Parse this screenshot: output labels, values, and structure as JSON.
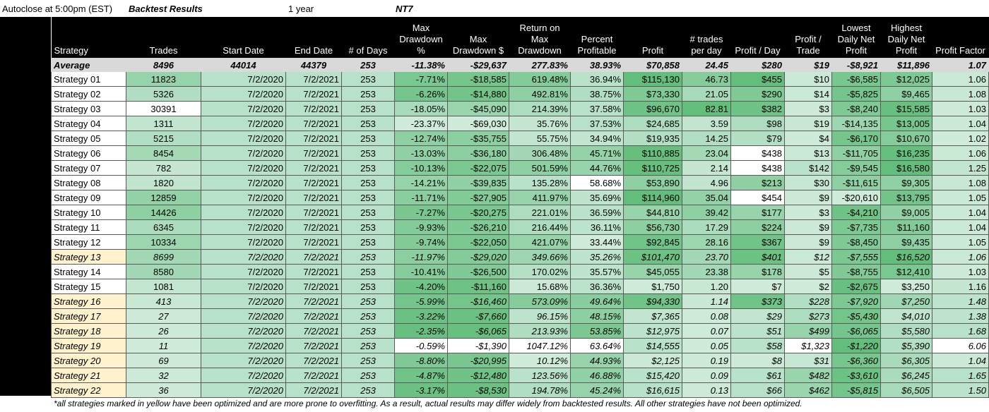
{
  "header": {
    "autoclose": "Autoclose at 5:00pm (EST)",
    "title": "Backtest Results",
    "period": "1 year",
    "platform": "NT7"
  },
  "columns": [
    "Strategy",
    "Trades",
    "Start Date",
    "End Date",
    "# of Days",
    "Max Drawdown %",
    "Max Drawdown $",
    "Return on Max Drawdown",
    "Percent Profitable",
    "Profit",
    "# trades per day",
    "Profit / Day",
    "Profit / Trade",
    "Lowest Daily Net Profit",
    "Highest Daily Net Profit",
    "Profit Factor"
  ],
  "column_lines": [
    [
      "Strategy"
    ],
    [
      "Trades"
    ],
    [
      "Start Date"
    ],
    [
      "End Date"
    ],
    [
      "# of Days"
    ],
    [
      "Max",
      "Drawdown",
      "%"
    ],
    [
      "Max",
      "Drawdown $"
    ],
    [
      "Return on",
      "Max",
      "Drawdown"
    ],
    [
      "Percent",
      "Profitable"
    ],
    [
      "Profit"
    ],
    [
      "# trades",
      "per day"
    ],
    [
      "Profit / Day"
    ],
    [
      "Profit /",
      "Trade"
    ],
    [
      "Lowest",
      "Daily Net",
      "Profit"
    ],
    [
      "Highest",
      "Daily Net",
      "Profit"
    ],
    [
      "Profit Factor"
    ]
  ],
  "average": [
    "Average",
    "8496",
    "44014",
    "44379",
    "253",
    "-11.38%",
    "-$29,637",
    "277.83%",
    "38.93%",
    "$70,858",
    "24.45",
    "$280",
    "$19",
    "-$8,921",
    "$11,896",
    "1.07"
  ],
  "rows": [
    {
      "optimized": false,
      "cells": [
        "Strategy 01",
        "11823",
        "7/2/2020",
        "7/2/2021",
        "253",
        "-7.71%",
        "-$18,585",
        "619.48%",
        "36.94%",
        "$115,130",
        "46.73",
        "$455",
        "$10",
        "-$6,585",
        "$12,025",
        "1.06"
      ]
    },
    {
      "optimized": false,
      "cells": [
        "Strategy 02",
        "5326",
        "7/2/2020",
        "7/2/2021",
        "253",
        "-6.26%",
        "-$14,880",
        "492.81%",
        "38.75%",
        "$73,330",
        "21.05",
        "$290",
        "$14",
        "-$5,825",
        "$9,465",
        "1.08"
      ]
    },
    {
      "optimized": false,
      "cells": [
        "Strategy 03",
        "30391",
        "7/2/2020",
        "7/2/2021",
        "253",
        "-18.05%",
        "-$45,090",
        "214.39%",
        "37.58%",
        "$96,670",
        "82.81",
        "$382",
        "$3",
        "-$8,240",
        "$15,585",
        "1.03"
      ]
    },
    {
      "optimized": false,
      "cells": [
        "Strategy 04",
        "1311",
        "7/2/2020",
        "7/2/2021",
        "253",
        "-23.37%",
        "-$69,030",
        "35.76%",
        "37.53%",
        "$24,685",
        "3.59",
        "$98",
        "$19",
        "-$14,135",
        "$13,005",
        "1.04"
      ]
    },
    {
      "optimized": false,
      "cells": [
        "Strategy 05",
        "5215",
        "7/2/2020",
        "7/2/2021",
        "253",
        "-12.74%",
        "-$35,755",
        "55.75%",
        "34.94%",
        "$19,935",
        "14.25",
        "$79",
        "$4",
        "-$6,170",
        "$10,670",
        "1.02"
      ]
    },
    {
      "optimized": false,
      "cells": [
        "Strategy 06",
        "8454",
        "7/2/2020",
        "7/2/2021",
        "253",
        "-13.03%",
        "-$36,180",
        "306.48%",
        "45.71%",
        "$110,885",
        "23.04",
        "$438",
        "$13",
        "-$11,705",
        "$16,235",
        "1.06"
      ]
    },
    {
      "optimized": false,
      "cells": [
        "Strategy 07",
        "782",
        "7/2/2020",
        "7/2/2021",
        "253",
        "-10.13%",
        "-$22,075",
        "501.59%",
        "44.76%",
        "$110,725",
        "2.14",
        "$438",
        "$142",
        "-$9,545",
        "$16,580",
        "1.25"
      ]
    },
    {
      "optimized": false,
      "cells": [
        "Strategy 08",
        "1820",
        "7/2/2020",
        "7/2/2021",
        "253",
        "-14.21%",
        "-$39,835",
        "135.28%",
        "58.68%",
        "$53,890",
        "4.96",
        "$213",
        "$30",
        "-$11,615",
        "$9,305",
        "1.08"
      ]
    },
    {
      "optimized": false,
      "cells": [
        "Strategy 09",
        "12859",
        "7/2/2020",
        "7/2/2021",
        "253",
        "-11.71%",
        "-$27,905",
        "411.97%",
        "35.69%",
        "$114,960",
        "35.04",
        "$454",
        "$9",
        "-$20,610",
        "$13,795",
        "1.05"
      ]
    },
    {
      "optimized": false,
      "cells": [
        "Strategy 10",
        "14426",
        "7/2/2020",
        "7/2/2021",
        "253",
        "-7.27%",
        "-$20,275",
        "221.01%",
        "36.59%",
        "$44,810",
        "39.42",
        "$177",
        "$3",
        "-$4,210",
        "$9,005",
        "1.04"
      ]
    },
    {
      "optimized": false,
      "cells": [
        "Strategy 11",
        "6345",
        "7/2/2020",
        "7/2/2021",
        "253",
        "-9.93%",
        "-$26,210",
        "216.44%",
        "36.11%",
        "$56,730",
        "17.29",
        "$224",
        "$9",
        "-$7,735",
        "$11,160",
        "1.04"
      ]
    },
    {
      "optimized": false,
      "cells": [
        "Strategy 12",
        "10334",
        "7/2/2020",
        "7/2/2021",
        "253",
        "-9.74%",
        "-$22,050",
        "421.07%",
        "33.44%",
        "$92,845",
        "28.16",
        "$367",
        "$9",
        "-$8,450",
        "$9,435",
        "1.05"
      ]
    },
    {
      "optimized": true,
      "cells": [
        "Strategy 13",
        "8699",
        "7/2/2020",
        "7/2/2021",
        "253",
        "-11.97%",
        "-$29,020",
        "349.66%",
        "35.26%",
        "$101,470",
        "23.70",
        "$401",
        "$12",
        "-$7,555",
        "$16,520",
        "1.06"
      ]
    },
    {
      "optimized": false,
      "cells": [
        "Strategy 14",
        "8580",
        "7/2/2020",
        "7/2/2021",
        "253",
        "-10.41%",
        "-$26,500",
        "170.02%",
        "35.57%",
        "$45,055",
        "23.38",
        "$178",
        "$5",
        "-$8,755",
        "$12,410",
        "1.03"
      ]
    },
    {
      "optimized": false,
      "cells": [
        "Strategy 15",
        "1081",
        "7/2/2020",
        "7/2/2021",
        "253",
        "-4.20%",
        "-$11,160",
        "15.68%",
        "36.36%",
        "$1,750",
        "1.20",
        "$7",
        "$2",
        "-$2,675",
        "$3,250",
        "1.16"
      ]
    },
    {
      "optimized": true,
      "cells": [
        "Strategy 16",
        "413",
        "7/2/2020",
        "7/2/2021",
        "253",
        "-5.99%",
        "-$16,460",
        "573.09%",
        "49.64%",
        "$94,330",
        "1.14",
        "$373",
        "$228",
        "-$7,920",
        "$7,250",
        "1.48"
      ]
    },
    {
      "optimized": true,
      "cells": [
        "Strategy 17",
        "27",
        "7/2/2020",
        "7/2/2021",
        "253",
        "-3.22%",
        "-$7,660",
        "96.15%",
        "48.15%",
        "$7,365",
        "0.08",
        "$29",
        "$273",
        "-$5,430",
        "$4,010",
        "1.38"
      ]
    },
    {
      "optimized": true,
      "cells": [
        "Strategy 18",
        "26",
        "7/2/2020",
        "7/2/2021",
        "253",
        "-2.35%",
        "-$6,065",
        "213.93%",
        "53.85%",
        "$12,975",
        "0.07",
        "$51",
        "$499",
        "-$6,065",
        "$5,580",
        "1.68"
      ]
    },
    {
      "optimized": true,
      "cells": [
        "Strategy 19",
        "11",
        "7/2/2020",
        "7/2/2021",
        "253",
        "-0.59%",
        "-$1,390",
        "1047.12%",
        "63.64%",
        "$14,555",
        "0.05",
        "$58",
        "$1,323",
        "-$1,220",
        "$5,390",
        "6.06"
      ]
    },
    {
      "optimized": true,
      "cells": [
        "Strategy 20",
        "69",
        "7/2/2020",
        "7/2/2021",
        "253",
        "-8.80%",
        "-$20,995",
        "10.12%",
        "44.93%",
        "$2,125",
        "0.19",
        "$8",
        "$31",
        "-$6,360",
        "$6,305",
        "1.04"
      ]
    },
    {
      "optimized": true,
      "cells": [
        "Strategy 21",
        "32",
        "7/2/2020",
        "7/2/2021",
        "253",
        "-4.87%",
        "-$12,480",
        "123.56%",
        "46.88%",
        "$15,420",
        "0.09",
        "$61",
        "$482",
        "-$3,610",
        "$6,245",
        "1.65"
      ]
    },
    {
      "optimized": true,
      "cells": [
        "Strategy 22",
        "36",
        "7/2/2020",
        "7/2/2021",
        "253",
        "-3.17%",
        "-$8,530",
        "194.78%",
        "45.24%",
        "$16,615",
        "0.13",
        "$66",
        "$462",
        "-$5,815",
        "$6,505",
        "1.50"
      ]
    }
  ],
  "colors": {
    "light": "#e6f4ea",
    "mid": "#b7e1c8",
    "strong": "#63be7b",
    "optimized_highlight": "#fff2cc",
    "header_bg": "#000000",
    "average_bg": "#d9d9d9"
  },
  "footnote": "*all strategies marked in yellow  have been optimized and are more prone to overfitting. As a result, actual results may differ widely from backtested results. All other strategies have not been optimized."
}
